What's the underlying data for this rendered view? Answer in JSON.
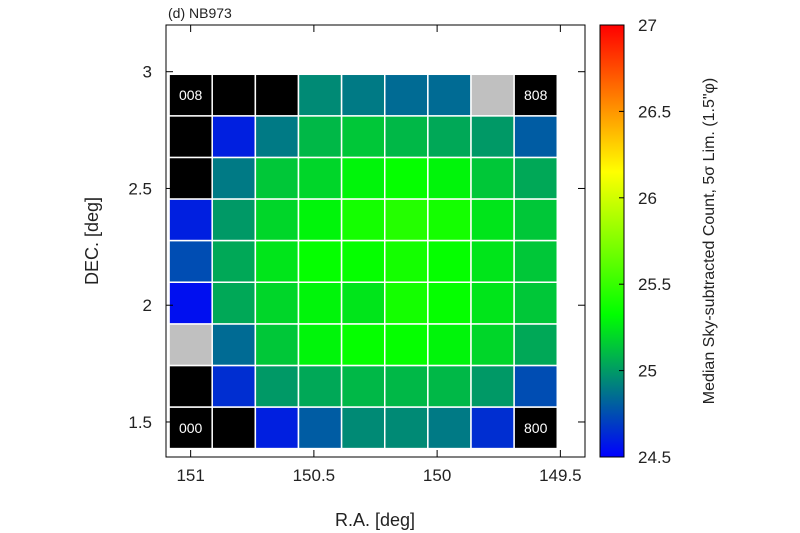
{
  "chart_data": {
    "type": "heatmap",
    "title": "(d) NB973",
    "xlabel": "R.A. [deg]",
    "ylabel": "DEC. [deg]",
    "colorbar_label": "Median Sky-subtracted Count, 5σ Lim. (1.5\"φ)",
    "xlim": [
      151.1,
      149.4
    ],
    "ylim": [
      1.35,
      3.2
    ],
    "x_reversed": true,
    "x_ticks": [
      151,
      150.5,
      150,
      149.5
    ],
    "x_tick_labels": [
      "151",
      "150.5",
      "150",
      "149.5"
    ],
    "y_ticks": [
      1.5,
      2,
      2.5,
      3
    ],
    "y_tick_labels": [
      "1.5",
      "2",
      "2.5",
      "3"
    ],
    "colorbar_range": [
      24.5,
      27
    ],
    "colorbar_ticks": [
      24.5,
      25,
      25.5,
      26,
      26.5,
      27
    ],
    "colorbar_tick_labels": [
      "24.5",
      "25",
      "25.5",
      "26",
      "26.5",
      "27"
    ],
    "colormap": [
      "#0000ff",
      "#00ff00",
      "#ffff00",
      "#ff0000"
    ],
    "x_centers": [
      151.0,
      150.825,
      150.65,
      150.475,
      150.3,
      150.125,
      149.95,
      149.775,
      149.6
    ],
    "y_centers": [
      1.475,
      1.653,
      1.831,
      2.009,
      2.188,
      2.366,
      2.544,
      2.722,
      2.9
    ],
    "cell_values": [
      [
        null,
        null,
        24.6,
        24.8,
        24.95,
        24.95,
        24.9,
        24.65,
        null
      ],
      [
        null,
        24.65,
        25.0,
        25.05,
        25.1,
        25.1,
        25.1,
        25.0,
        24.75
      ],
      [
        "nodata",
        24.85,
        25.15,
        25.3,
        25.35,
        25.35,
        25.3,
        25.2,
        25.05
      ],
      [
        24.55,
        25.05,
        25.2,
        25.3,
        25.25,
        25.4,
        25.35,
        25.25,
        25.15
      ],
      [
        24.75,
        25.05,
        25.25,
        25.35,
        25.35,
        25.4,
        25.35,
        25.25,
        25.15
      ],
      [
        24.6,
        25.0,
        25.2,
        25.3,
        25.4,
        25.45,
        25.4,
        25.25,
        25.15
      ],
      [
        null,
        24.9,
        25.15,
        25.2,
        25.3,
        25.35,
        25.3,
        25.15,
        25.05
      ],
      [
        null,
        24.6,
        24.9,
        25.1,
        25.15,
        25.1,
        25.05,
        25.0,
        24.8
      ],
      [
        null,
        null,
        null,
        24.95,
        24.9,
        24.85,
        24.85,
        "nodata",
        null
      ]
    ],
    "null_color": "#000000",
    "nodata_color": "#c0c0c0",
    "gridlines": false,
    "annotations": [
      {
        "text": "000",
        "col": 0,
        "row": 0
      },
      {
        "text": "800",
        "col": 8,
        "row": 0
      },
      {
        "text": "008",
        "col": 0,
        "row": 8
      },
      {
        "text": "808",
        "col": 8,
        "row": 8
      }
    ]
  }
}
